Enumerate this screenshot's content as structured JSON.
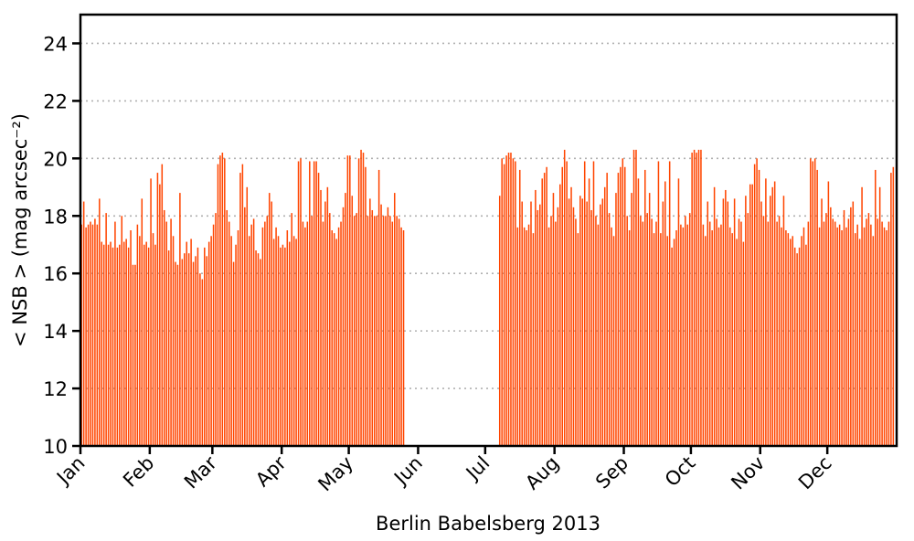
{
  "chart_data": {
    "type": "bar",
    "title": "",
    "xlabel": "Berlin Babelsberg 2013",
    "ylabel": "< NSB >  (mag arcsec⁻²)",
    "ylim": [
      10,
      25
    ],
    "yticks": [
      10,
      12,
      14,
      16,
      18,
      20,
      22,
      24
    ],
    "grid": "horizontal dotted",
    "bar_color": "#ff4500",
    "x_range_days": [
      1,
      366
    ],
    "month_ticks": [
      {
        "label": "Jan",
        "day": 1
      },
      {
        "label": "Feb",
        "day": 32
      },
      {
        "label": "Mar",
        "day": 60
      },
      {
        "label": "Apr",
        "day": 91
      },
      {
        "label": "May",
        "day": 121
      },
      {
        "label": "Jun",
        "day": 152
      },
      {
        "label": "Jul",
        "day": 182
      },
      {
        "label": "Aug",
        "day": 213
      },
      {
        "label": "Sep",
        "day": 244
      },
      {
        "label": "Oct",
        "day": 274
      },
      {
        "label": "Nov",
        "day": 305
      },
      {
        "label": "Dec",
        "day": 335
      }
    ],
    "series": [
      {
        "segments": [
          {
            "start_day": 1,
            "values": [
              17.7,
              18.5,
              17.6,
              17.7,
              17.8,
              17.7,
              17.9,
              17.7,
              18.6,
              17.1,
              17.0,
              18.1,
              17.0,
              17.1,
              16.9,
              17.8,
              16.9,
              17.0,
              18.0,
              17.1,
              17.2,
              16.9,
              17.5,
              16.3,
              16.3,
              17.7,
              17.3,
              18.6,
              17.0,
              17.1,
              16.9,
              19.3,
              17.4,
              17.0,
              19.5,
              19.1,
              19.8,
              18.2,
              17.8,
              16.8,
              17.9,
              17.3,
              16.4,
              16.3,
              18.8,
              16.5,
              16.7,
              17.1,
              16.7,
              17.2,
              16.4,
              16.6,
              16.9,
              16.0,
              15.8,
              16.9,
              16.6,
              17.1,
              17.3,
              17.7,
              18.1,
              19.8,
              20.1,
              20.2,
              20.0,
              18.2,
              17.8,
              17.3,
              16.4,
              17.0,
              17.5,
              19.5,
              19.8,
              18.3,
              19.0,
              17.3,
              17.7,
              17.9,
              16.8,
              16.7,
              16.5,
              17.6,
              17.8,
              18.0,
              18.8,
              18.5,
              17.2,
              17.6,
              17.3,
              16.9,
              17.0,
              16.9,
              17.5,
              17.1,
              18.1,
              17.3,
              17.2,
              19.9,
              20.0,
              17.8,
              17.6,
              17.8,
              19.9,
              18.0,
              19.9,
              19.9,
              19.5,
              18.9,
              17.8,
              18.5,
              19.0,
              18.1,
              17.5,
              17.4,
              17.2,
              17.6,
              17.8,
              18.3,
              18.8,
              20.1,
              20.1,
              18.7,
              18.0,
              18.1,
              20.0,
              20.3,
              20.2,
              19.7,
              18.0,
              18.6,
              18.2,
              18.0,
              18.0,
              19.6,
              18.4,
              18.0,
              18.0,
              18.3,
              18.0,
              17.8,
              18.8,
              18.0,
              17.9,
              17.6,
              17.5
            ]
          },
          {
            "start_day": 188,
            "values": [
              18.7,
              20.0,
              19.8,
              20.1,
              20.2,
              20.2,
              20.0,
              19.9,
              17.6,
              19.6,
              18.5,
              17.6,
              17.5,
              17.7,
              18.5,
              17.4,
              18.9,
              18.2,
              18.4,
              19.3,
              19.5,
              19.7,
              17.6,
              18.0,
              18.8,
              17.8,
              18.3,
              19.1,
              19.7,
              20.3,
              19.9,
              18.6,
              19.0,
              18.3,
              17.9,
              17.4,
              18.7,
              18.6,
              19.9,
              18.5,
              19.3,
              18.2,
              19.9,
              18.0,
              17.7,
              18.4,
              18.6,
              19.0,
              19.5,
              18.1,
              17.6,
              17.3,
              18.8,
              19.5,
              19.7,
              20.0,
              19.7,
              18.0,
              17.5,
              18.8,
              20.3,
              20.3,
              19.3,
              18.0,
              17.8,
              19.6,
              18.1,
              18.8,
              17.9,
              17.4,
              17.8,
              19.9,
              17.4,
              18.5,
              19.2,
              17.3,
              19.9,
              16.9,
              17.2,
              17.5,
              19.3,
              17.7,
              17.6,
              18.0,
              17.7,
              18.1,
              20.2,
              20.3,
              20.2,
              20.3,
              20.3,
              17.7,
              17.3,
              18.5,
              17.8,
              17.5,
              19.0,
              17.9,
              17.6,
              17.7,
              18.6,
              18.9,
              18.5,
              17.6,
              17.4,
              18.6,
              17.2,
              17.9,
              17.8,
              17.1,
              18.7,
              18.1,
              19.1,
              19.1,
              19.8,
              20.0,
              19.6,
              18.5,
              18.0,
              19.3,
              17.8,
              18.7,
              19.0,
              19.2,
              17.8,
              18.0,
              17.6,
              18.7,
              17.5,
              17.4,
              17.2,
              17.3,
              16.9,
              16.7,
              16.9,
              17.3,
              17.6,
              17.0,
              17.8,
              20.0,
              19.9,
              20.0,
              19.6,
              17.6,
              18.6,
              17.8,
              18.1,
              19.2,
              18.3,
              17.9,
              17.8,
              17.6,
              17.7,
              17.5,
              18.2,
              17.6,
              17.9,
              18.3,
              18.5,
              17.4,
              17.7,
              17.2,
              19.0,
              17.6,
              17.9,
              18.1,
              17.7,
              17.3,
              19.6,
              17.9,
              19.0,
              17.8,
              17.6,
              17.5,
              17.8,
              19.5,
              19.7
            ]
          }
        ]
      }
    ]
  }
}
